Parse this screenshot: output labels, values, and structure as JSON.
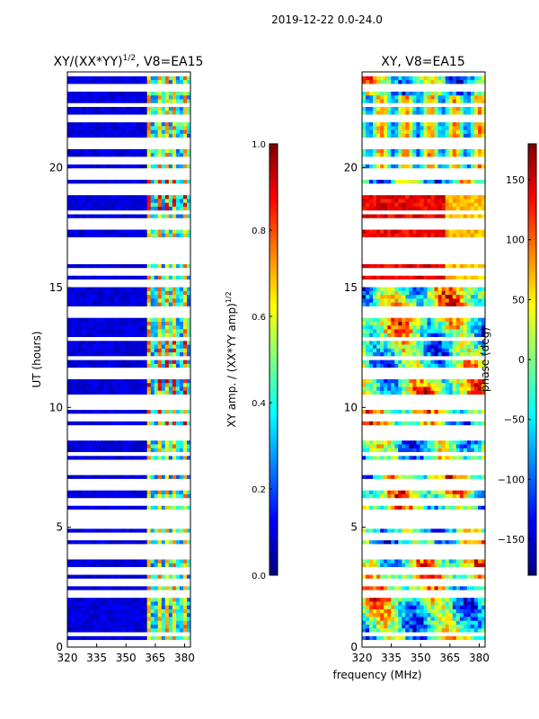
{
  "figure": {
    "suptitle": "2019-12-22 0.0-24.0",
    "xlabel_shared": "frequency (MHz)"
  },
  "colors": {
    "jet": [
      "#00007f",
      "#0000ff",
      "#007fff",
      "#00ffff",
      "#7fff7f",
      "#ffff00",
      "#ff7f00",
      "#ff0000",
      "#7f0000"
    ],
    "gap": "#ffffff"
  },
  "chart_data": [
    {
      "type": "heatmap",
      "title": "XY/(XX*YY)",
      "title_sup": "1/2",
      "title_tail": ", V8=EA15",
      "xlabel": "",
      "ylabel": "UT (hours)",
      "xlim": [
        320,
        383
      ],
      "ylim": [
        0,
        24
      ],
      "xticks": [
        320,
        335,
        350,
        365,
        380
      ],
      "yticks": [
        0,
        5,
        10,
        15,
        20
      ],
      "colorbar": {
        "label": "XY amp. / (XX*YY amp)",
        "label_sup": "1/2",
        "range": [
          0,
          1
        ],
        "ticks": [
          "0.0",
          "0.2",
          "0.4",
          "0.6",
          "0.8",
          "1.0"
        ]
      },
      "description_values": {
        "background_level": 0.05,
        "active_band_start_mhz": 361,
        "active_band_peak_level": 0.8
      }
    },
    {
      "type": "heatmap",
      "title": "XY, V8=EA15",
      "xlabel": "frequency (MHz)",
      "ylabel": "",
      "xlim": [
        320,
        383
      ],
      "ylim": [
        0,
        24
      ],
      "xticks": [
        320,
        335,
        350,
        365,
        380
      ],
      "yticks": [
        0,
        5,
        10,
        15,
        20
      ],
      "colorbar": {
        "label": "phase (deg)",
        "range": [
          -180,
          180
        ],
        "ticks": [
          "−150",
          "−100",
          "−50",
          "0",
          "50",
          "100",
          "150"
        ]
      }
    }
  ],
  "data_gaps_hours": [
    [
      7.2,
      7.8
    ],
    [
      13.8,
      14.1
    ],
    [
      15.6,
      15.8
    ],
    [
      23.9,
      24.0
    ]
  ]
}
